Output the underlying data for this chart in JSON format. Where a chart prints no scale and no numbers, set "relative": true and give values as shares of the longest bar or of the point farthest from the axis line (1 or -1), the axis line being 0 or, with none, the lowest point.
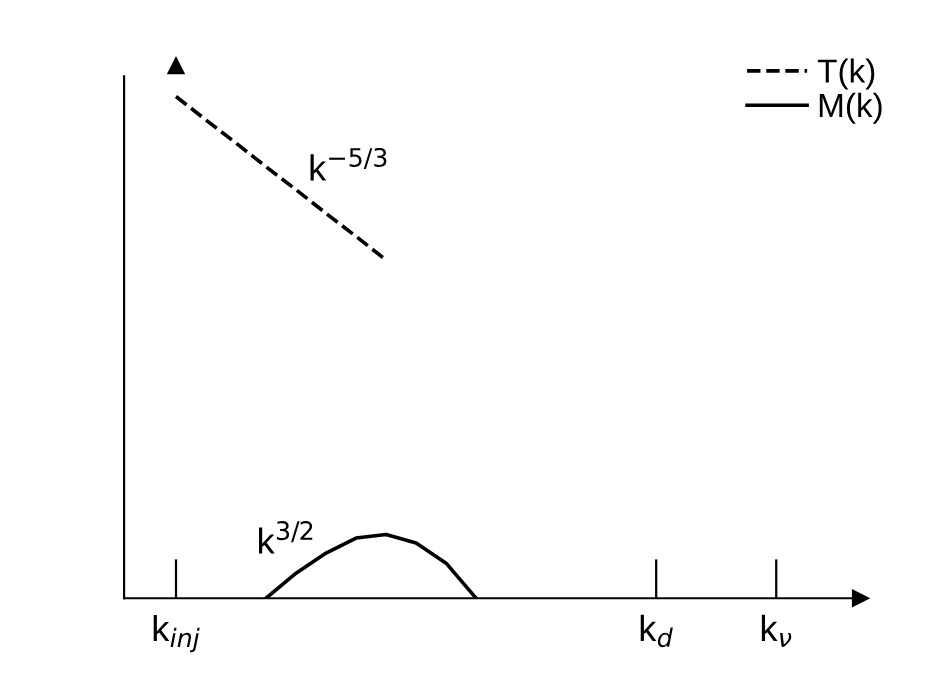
{
  "chart_data": {
    "type": "line",
    "relative": true,
    "categories": [
      "k$_{inj}$",
      null,
      null,
      null,
      null,
      null,
      null,
      null,
      null,
      null,
      null,
      null,
      null,
      null,
      null,
      null,
      "k$_{d}$",
      null,
      null,
      null,
      "k$_{ν}$"
    ],
    "series": [
      {
        "name": "T(k)",
        "color": "#000000",
        "line_style": "dashed",
        "values": [
          1.0,
          0.953,
          0.907,
          0.86,
          0.814,
          0.767,
          0.721,
          0.674,
          null,
          null,
          null,
          null,
          null,
          null,
          null,
          null,
          null,
          null,
          null,
          null,
          null
        ]
      },
      {
        "name": "M(k)",
        "color": "#000000",
        "line_style": "solid",
        "values": [
          null,
          null,
          null,
          0,
          0.05,
          0.09,
          0.12,
          0.127,
          0.11,
          0.07,
          0,
          null,
          null,
          null,
          null,
          null,
          null,
          null,
          null,
          null,
          null
        ]
      }
    ],
    "annotations": [
      "k$^{−5/3}$",
      "k$^{3/2}$"
    ],
    "legend": "top right",
    "grid": false,
    "marker": "none"
  }
}
